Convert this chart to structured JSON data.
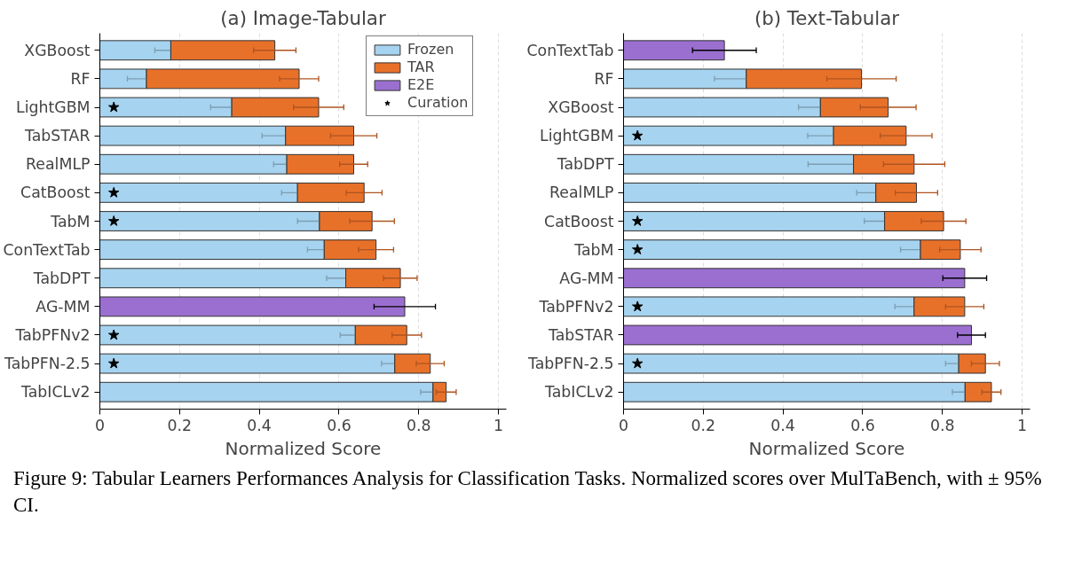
{
  "chart_data": [
    {
      "type": "bar",
      "orientation": "horizontal",
      "stacked": true,
      "title": "(a) Image-Tabular",
      "xlabel": "Normalized Score",
      "xlim": [
        0,
        1.02
      ],
      "xticks": [
        0,
        0.2,
        0.4,
        0.6,
        0.8,
        1
      ],
      "grid": "x",
      "legend": "top right",
      "categories": [
        "XGBoost",
        "RF",
        "LightGBM",
        "TabSTAR",
        "RealMLP",
        "CatBoost",
        "TabM",
        "ConTextTab",
        "TabDPT",
        "AG-MM",
        "TabPFNv2",
        "TabPFN-2.5",
        "TabICLv2"
      ],
      "series": [
        {
          "name": "Frozen",
          "color": "#a6d3ef",
          "values": [
            0.178,
            0.117,
            0.331,
            0.466,
            0.469,
            0.496,
            0.551,
            0.563,
            0.617,
            null,
            0.641,
            0.74,
            0.836
          ],
          "errors": [
            0.04,
            0.048,
            0.053,
            0.059,
            0.033,
            0.04,
            0.055,
            0.042,
            0.048,
            null,
            0.038,
            0.033,
            0.031
          ]
        },
        {
          "name": "TAR",
          "color": "#e8712a",
          "values": [
            0.261,
            0.383,
            0.218,
            0.171,
            0.168,
            0.167,
            0.132,
            0.13,
            0.137,
            null,
            0.129,
            0.089,
            0.033
          ],
          "errors": [
            0.053,
            0.049,
            0.063,
            0.058,
            0.035,
            0.045,
            0.056,
            0.044,
            0.042,
            null,
            0.037,
            0.035,
            0.025
          ]
        },
        {
          "name": "E2E",
          "color": "#9b6fd0",
          "values": [
            null,
            null,
            null,
            null,
            null,
            null,
            null,
            null,
            null,
            0.765,
            null,
            null,
            null
          ],
          "errors": [
            null,
            null,
            null,
            null,
            null,
            null,
            null,
            null,
            null,
            0.077,
            null,
            null,
            null
          ]
        },
        {
          "name": "Curation",
          "type": "scatter",
          "marker": "star",
          "color": "#000000",
          "values": [
            null,
            null,
            0.035,
            null,
            null,
            0.035,
            0.035,
            null,
            null,
            null,
            0.035,
            0.035,
            null
          ]
        }
      ],
      "annotations": [
        "Figure 9: Tabular Learners Performances Analysis for Classification Tasks. Normalized scores over MulTaBench, with ± 95% CI."
      ]
    },
    {
      "type": "bar",
      "orientation": "horizontal",
      "stacked": true,
      "title": "(b) Text-Tabular",
      "xlabel": "Normalized Score",
      "xlim": [
        0,
        1.02
      ],
      "xticks": [
        0,
        0.2,
        0.4,
        0.6,
        0.8,
        1
      ],
      "grid": "x",
      "categories": [
        "ConTextTab",
        "RF",
        "XGBoost",
        "LightGBM",
        "TabDPT",
        "RealMLP",
        "CatBoost",
        "TabM",
        "AG-MM",
        "TabPFNv2",
        "TabSTAR",
        "TabPFN-2.5",
        "TabICLv2"
      ],
      "series": [
        {
          "color": "#a6d3ef",
          "values": [
            null,
            0.308,
            0.494,
            0.527,
            0.577,
            0.633,
            0.655,
            0.745,
            null,
            0.729,
            null,
            0.841,
            0.857
          ],
          "errors": [
            null,
            0.08,
            0.055,
            0.065,
            0.114,
            0.048,
            0.051,
            0.05,
            null,
            0.048,
            null,
            0.033,
            0.032
          ]
        },
        {
          "color": "#e8712a",
          "values": [
            null,
            0.289,
            0.17,
            0.182,
            0.152,
            0.102,
            0.148,
            0.1,
            null,
            0.127,
            null,
            0.067,
            0.066
          ],
          "errors": [
            null,
            0.087,
            0.07,
            0.065,
            0.077,
            0.053,
            0.056,
            0.052,
            null,
            0.048,
            null,
            0.035,
            0.024
          ]
        },
        {
          "color": "#9b6fd0",
          "values": [
            0.253,
            null,
            null,
            null,
            null,
            null,
            null,
            null,
            0.856,
            null,
            0.873,
            null,
            null
          ],
          "errors": [
            0.08,
            null,
            null,
            null,
            null,
            null,
            null,
            null,
            0.055,
            null,
            0.035,
            null,
            null
          ]
        },
        {
          "type": "scatter",
          "marker": "star",
          "color": "#000000",
          "values": [
            null,
            null,
            null,
            0.035,
            null,
            null,
            0.035,
            0.035,
            null,
            0.035,
            null,
            0.035,
            null
          ]
        }
      ]
    }
  ]
}
